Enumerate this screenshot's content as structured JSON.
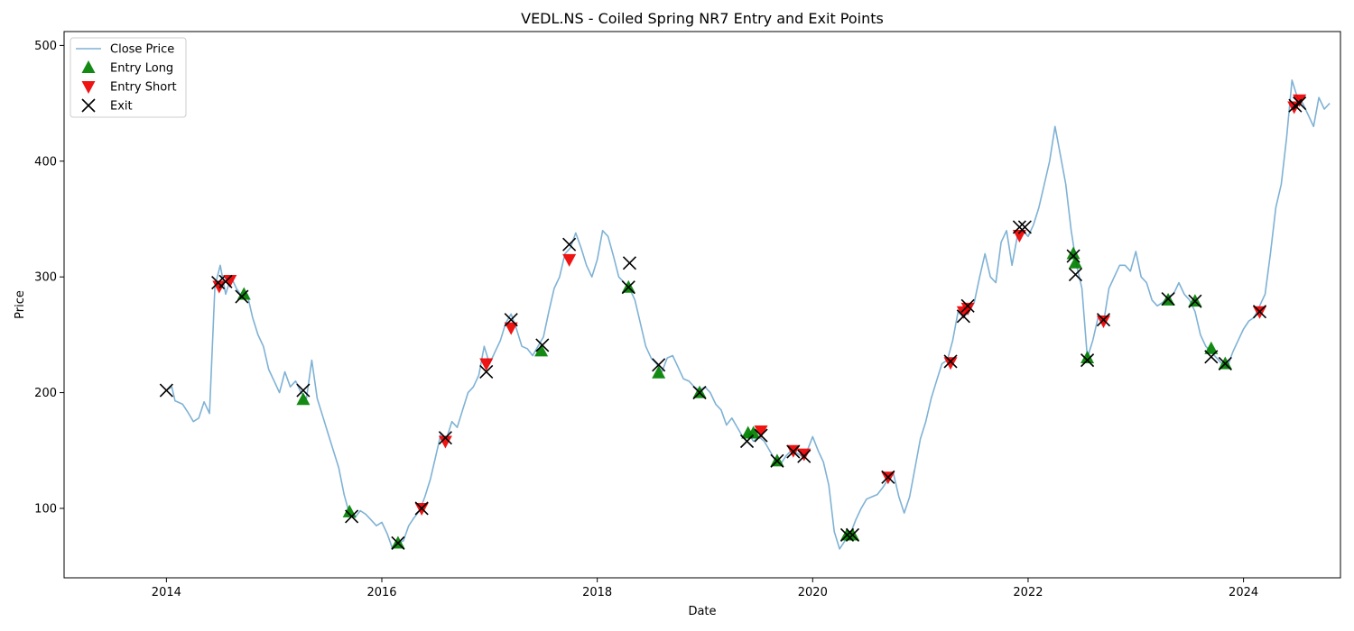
{
  "chart_data": {
    "type": "line",
    "title": "VEDL.NS - Coiled Spring NR7 Entry and Exit Points",
    "xlabel": "Date",
    "ylabel": "Price",
    "xlim": [
      2013.05,
      2024.9
    ],
    "ylim": [
      40,
      512
    ],
    "x_ticks": [
      2014,
      2016,
      2018,
      2020,
      2022,
      2024
    ],
    "x_tick_labels": [
      "2014",
      "2016",
      "2018",
      "2020",
      "2022",
      "2024"
    ],
    "y_ticks": [
      100,
      200,
      300,
      400,
      500
    ],
    "y_tick_labels": [
      "100",
      "200",
      "300",
      "400",
      "500"
    ],
    "grid": false,
    "legend_position": "upper-left",
    "colors": {
      "close": "#7fb2d5",
      "entry_long": "#008000",
      "entry_short": "#ee0000",
      "exit": "#000000"
    },
    "series": [
      {
        "name": "Close Price",
        "kind": "line",
        "points": [
          [
            2014.0,
            202
          ],
          [
            2014.05,
            205
          ],
          [
            2014.08,
            193
          ],
          [
            2014.15,
            190
          ],
          [
            2014.2,
            183
          ],
          [
            2014.25,
            175
          ],
          [
            2014.3,
            178
          ],
          [
            2014.35,
            192
          ],
          [
            2014.4,
            182
          ],
          [
            2014.45,
            292
          ],
          [
            2014.5,
            310
          ],
          [
            2014.55,
            285
          ],
          [
            2014.6,
            300
          ],
          [
            2014.65,
            290
          ],
          [
            2014.7,
            283
          ],
          [
            2014.75,
            285
          ],
          [
            2014.8,
            265
          ],
          [
            2014.85,
            250
          ],
          [
            2014.9,
            240
          ],
          [
            2014.95,
            220
          ],
          [
            2015.0,
            210
          ],
          [
            2015.05,
            200
          ],
          [
            2015.1,
            218
          ],
          [
            2015.15,
            205
          ],
          [
            2015.2,
            210
          ],
          [
            2015.25,
            200
          ],
          [
            2015.3,
            195
          ],
          [
            2015.35,
            228
          ],
          [
            2015.4,
            195
          ],
          [
            2015.45,
            180
          ],
          [
            2015.5,
            165
          ],
          [
            2015.55,
            150
          ],
          [
            2015.6,
            135
          ],
          [
            2015.65,
            112
          ],
          [
            2015.7,
            95
          ],
          [
            2015.75,
            92
          ],
          [
            2015.8,
            98
          ],
          [
            2015.85,
            95
          ],
          [
            2015.9,
            90
          ],
          [
            2015.95,
            85
          ],
          [
            2016.0,
            88
          ],
          [
            2016.05,
            78
          ],
          [
            2016.1,
            65
          ],
          [
            2016.15,
            70
          ],
          [
            2016.2,
            72
          ],
          [
            2016.25,
            85
          ],
          [
            2016.3,
            92
          ],
          [
            2016.35,
            98
          ],
          [
            2016.4,
            110
          ],
          [
            2016.45,
            125
          ],
          [
            2016.5,
            145
          ],
          [
            2016.55,
            165
          ],
          [
            2016.6,
            160
          ],
          [
            2016.65,
            175
          ],
          [
            2016.7,
            170
          ],
          [
            2016.75,
            185
          ],
          [
            2016.8,
            200
          ],
          [
            2016.85,
            205
          ],
          [
            2016.9,
            215
          ],
          [
            2016.95,
            240
          ],
          [
            2017.0,
            225
          ],
          [
            2017.05,
            235
          ],
          [
            2017.1,
            245
          ],
          [
            2017.15,
            260
          ],
          [
            2017.2,
            268
          ],
          [
            2017.25,
            255
          ],
          [
            2017.3,
            240
          ],
          [
            2017.35,
            238
          ],
          [
            2017.4,
            232
          ],
          [
            2017.45,
            240
          ],
          [
            2017.5,
            248
          ],
          [
            2017.55,
            270
          ],
          [
            2017.6,
            290
          ],
          [
            2017.65,
            300
          ],
          [
            2017.7,
            320
          ],
          [
            2017.75,
            325
          ],
          [
            2017.8,
            338
          ],
          [
            2017.85,
            325
          ],
          [
            2017.9,
            310
          ],
          [
            2017.95,
            300
          ],
          [
            2018.0,
            315
          ],
          [
            2018.05,
            340
          ],
          [
            2018.1,
            335
          ],
          [
            2018.15,
            318
          ],
          [
            2018.2,
            300
          ],
          [
            2018.25,
            295
          ],
          [
            2018.3,
            290
          ],
          [
            2018.35,
            280
          ],
          [
            2018.4,
            260
          ],
          [
            2018.45,
            240
          ],
          [
            2018.5,
            230
          ],
          [
            2018.55,
            225
          ],
          [
            2018.6,
            218
          ],
          [
            2018.65,
            230
          ],
          [
            2018.7,
            232
          ],
          [
            2018.75,
            222
          ],
          [
            2018.8,
            212
          ],
          [
            2018.85,
            210
          ],
          [
            2018.9,
            205
          ],
          [
            2018.95,
            202
          ],
          [
            2019.0,
            205
          ],
          [
            2019.05,
            200
          ],
          [
            2019.1,
            190
          ],
          [
            2019.15,
            185
          ],
          [
            2019.2,
            172
          ],
          [
            2019.25,
            178
          ],
          [
            2019.3,
            170
          ],
          [
            2019.35,
            162
          ],
          [
            2019.4,
            165
          ],
          [
            2019.45,
            158
          ],
          [
            2019.5,
            162
          ],
          [
            2019.55,
            158
          ],
          [
            2019.6,
            150
          ],
          [
            2019.65,
            142
          ],
          [
            2019.7,
            138
          ],
          [
            2019.75,
            145
          ],
          [
            2019.8,
            150
          ],
          [
            2019.85,
            148
          ],
          [
            2019.9,
            145
          ],
          [
            2019.95,
            150
          ],
          [
            2020.0,
            162
          ],
          [
            2020.05,
            150
          ],
          [
            2020.1,
            140
          ],
          [
            2020.15,
            120
          ],
          [
            2020.2,
            80
          ],
          [
            2020.25,
            65
          ],
          [
            2020.3,
            72
          ],
          [
            2020.35,
            78
          ],
          [
            2020.4,
            90
          ],
          [
            2020.45,
            100
          ],
          [
            2020.5,
            108
          ],
          [
            2020.55,
            110
          ],
          [
            2020.6,
            112
          ],
          [
            2020.65,
            118
          ],
          [
            2020.7,
            125
          ],
          [
            2020.75,
            130
          ],
          [
            2020.8,
            110
          ],
          [
            2020.85,
            96
          ],
          [
            2020.9,
            110
          ],
          [
            2020.95,
            135
          ],
          [
            2021.0,
            160
          ],
          [
            2021.05,
            175
          ],
          [
            2021.1,
            195
          ],
          [
            2021.15,
            210
          ],
          [
            2021.2,
            225
          ],
          [
            2021.25,
            228
          ],
          [
            2021.3,
            245
          ],
          [
            2021.35,
            270
          ],
          [
            2021.4,
            265
          ],
          [
            2021.45,
            270
          ],
          [
            2021.5,
            278
          ],
          [
            2021.55,
            300
          ],
          [
            2021.6,
            320
          ],
          [
            2021.65,
            300
          ],
          [
            2021.7,
            295
          ],
          [
            2021.75,
            330
          ],
          [
            2021.8,
            340
          ],
          [
            2021.85,
            310
          ],
          [
            2021.9,
            335
          ],
          [
            2021.95,
            340
          ],
          [
            2022.0,
            335
          ],
          [
            2022.05,
            345
          ],
          [
            2022.1,
            360
          ],
          [
            2022.15,
            380
          ],
          [
            2022.2,
            400
          ],
          [
            2022.25,
            430
          ],
          [
            2022.3,
            405
          ],
          [
            2022.35,
            380
          ],
          [
            2022.4,
            340
          ],
          [
            2022.45,
            310
          ],
          [
            2022.5,
            290
          ],
          [
            2022.55,
            230
          ],
          [
            2022.6,
            245
          ],
          [
            2022.65,
            265
          ],
          [
            2022.7,
            260
          ],
          [
            2022.75,
            290
          ],
          [
            2022.8,
            300
          ],
          [
            2022.85,
            310
          ],
          [
            2022.9,
            310
          ],
          [
            2022.95,
            305
          ],
          [
            2023.0,
            322
          ],
          [
            2023.05,
            300
          ],
          [
            2023.1,
            295
          ],
          [
            2023.15,
            280
          ],
          [
            2023.2,
            275
          ],
          [
            2023.25,
            278
          ],
          [
            2023.3,
            283
          ],
          [
            2023.35,
            285
          ],
          [
            2023.4,
            295
          ],
          [
            2023.45,
            285
          ],
          [
            2023.5,
            280
          ],
          [
            2023.55,
            270
          ],
          [
            2023.6,
            250
          ],
          [
            2023.65,
            240
          ],
          [
            2023.7,
            235
          ],
          [
            2023.75,
            230
          ],
          [
            2023.8,
            225
          ],
          [
            2023.85,
            222
          ],
          [
            2023.9,
            235
          ],
          [
            2023.95,
            245
          ],
          [
            2024.0,
            255
          ],
          [
            2024.05,
            262
          ],
          [
            2024.1,
            265
          ],
          [
            2024.15,
            275
          ],
          [
            2024.2,
            285
          ],
          [
            2024.25,
            320
          ],
          [
            2024.3,
            360
          ],
          [
            2024.35,
            380
          ],
          [
            2024.4,
            420
          ],
          [
            2024.45,
            470
          ],
          [
            2024.5,
            455
          ],
          [
            2024.55,
            450
          ],
          [
            2024.6,
            440
          ],
          [
            2024.65,
            430
          ],
          [
            2024.7,
            455
          ],
          [
            2024.75,
            445
          ],
          [
            2024.8,
            450
          ]
        ]
      },
      {
        "name": "Entry Long",
        "kind": "marker",
        "points": [
          [
            2014.72,
            285
          ],
          [
            2015.27,
            194
          ],
          [
            2015.7,
            97
          ],
          [
            2016.15,
            70
          ],
          [
            2017.48,
            236
          ],
          [
            2018.29,
            291
          ],
          [
            2018.57,
            217
          ],
          [
            2018.95,
            200
          ],
          [
            2019.4,
            165
          ],
          [
            2019.45,
            165
          ],
          [
            2019.67,
            141
          ],
          [
            2020.32,
            77
          ],
          [
            2020.37,
            77
          ],
          [
            2022.42,
            320
          ],
          [
            2022.44,
            312
          ],
          [
            2022.55,
            230
          ],
          [
            2023.3,
            280
          ],
          [
            2023.55,
            279
          ],
          [
            2023.7,
            238
          ],
          [
            2023.83,
            225
          ]
        ]
      },
      {
        "name": "Entry Short",
        "kind": "marker",
        "points": [
          [
            2014.49,
            292
          ],
          [
            2014.59,
            297
          ],
          [
            2016.37,
            100
          ],
          [
            2016.59,
            158
          ],
          [
            2016.97,
            225
          ],
          [
            2017.2,
            256
          ],
          [
            2017.74,
            315
          ],
          [
            2019.52,
            167
          ],
          [
            2019.82,
            150
          ],
          [
            2019.92,
            147
          ],
          [
            2020.7,
            127
          ],
          [
            2021.28,
            226
          ],
          [
            2021.4,
            270
          ],
          [
            2021.44,
            273
          ],
          [
            2021.92,
            336
          ],
          [
            2022.7,
            262
          ],
          [
            2024.15,
            270
          ],
          [
            2024.47,
            447
          ],
          [
            2024.52,
            453
          ]
        ]
      },
      {
        "name": "Exit",
        "kind": "marker",
        "points": [
          [
            2014.0,
            202
          ],
          [
            2014.48,
            295
          ],
          [
            2014.55,
            296
          ],
          [
            2014.7,
            283
          ],
          [
            2015.27,
            202
          ],
          [
            2015.72,
            93
          ],
          [
            2016.15,
            70
          ],
          [
            2016.37,
            100
          ],
          [
            2016.59,
            161
          ],
          [
            2016.97,
            218
          ],
          [
            2017.2,
            263
          ],
          [
            2017.49,
            241
          ],
          [
            2017.74,
            328
          ],
          [
            2018.3,
            312
          ],
          [
            2018.29,
            291
          ],
          [
            2018.57,
            224
          ],
          [
            2018.95,
            200
          ],
          [
            2019.39,
            158
          ],
          [
            2019.52,
            163
          ],
          [
            2019.67,
            141
          ],
          [
            2019.82,
            149
          ],
          [
            2019.92,
            145
          ],
          [
            2020.32,
            77
          ],
          [
            2020.37,
            77
          ],
          [
            2020.7,
            127
          ],
          [
            2021.28,
            227
          ],
          [
            2021.4,
            266
          ],
          [
            2021.44,
            275
          ],
          [
            2021.92,
            343
          ],
          [
            2021.97,
            343
          ],
          [
            2022.42,
            318
          ],
          [
            2022.44,
            302
          ],
          [
            2022.55,
            228
          ],
          [
            2022.7,
            263
          ],
          [
            2023.3,
            281
          ],
          [
            2023.55,
            279
          ],
          [
            2023.7,
            231
          ],
          [
            2023.83,
            225
          ],
          [
            2024.15,
            270
          ],
          [
            2024.48,
            448
          ],
          [
            2024.52,
            450
          ]
        ]
      }
    ]
  }
}
